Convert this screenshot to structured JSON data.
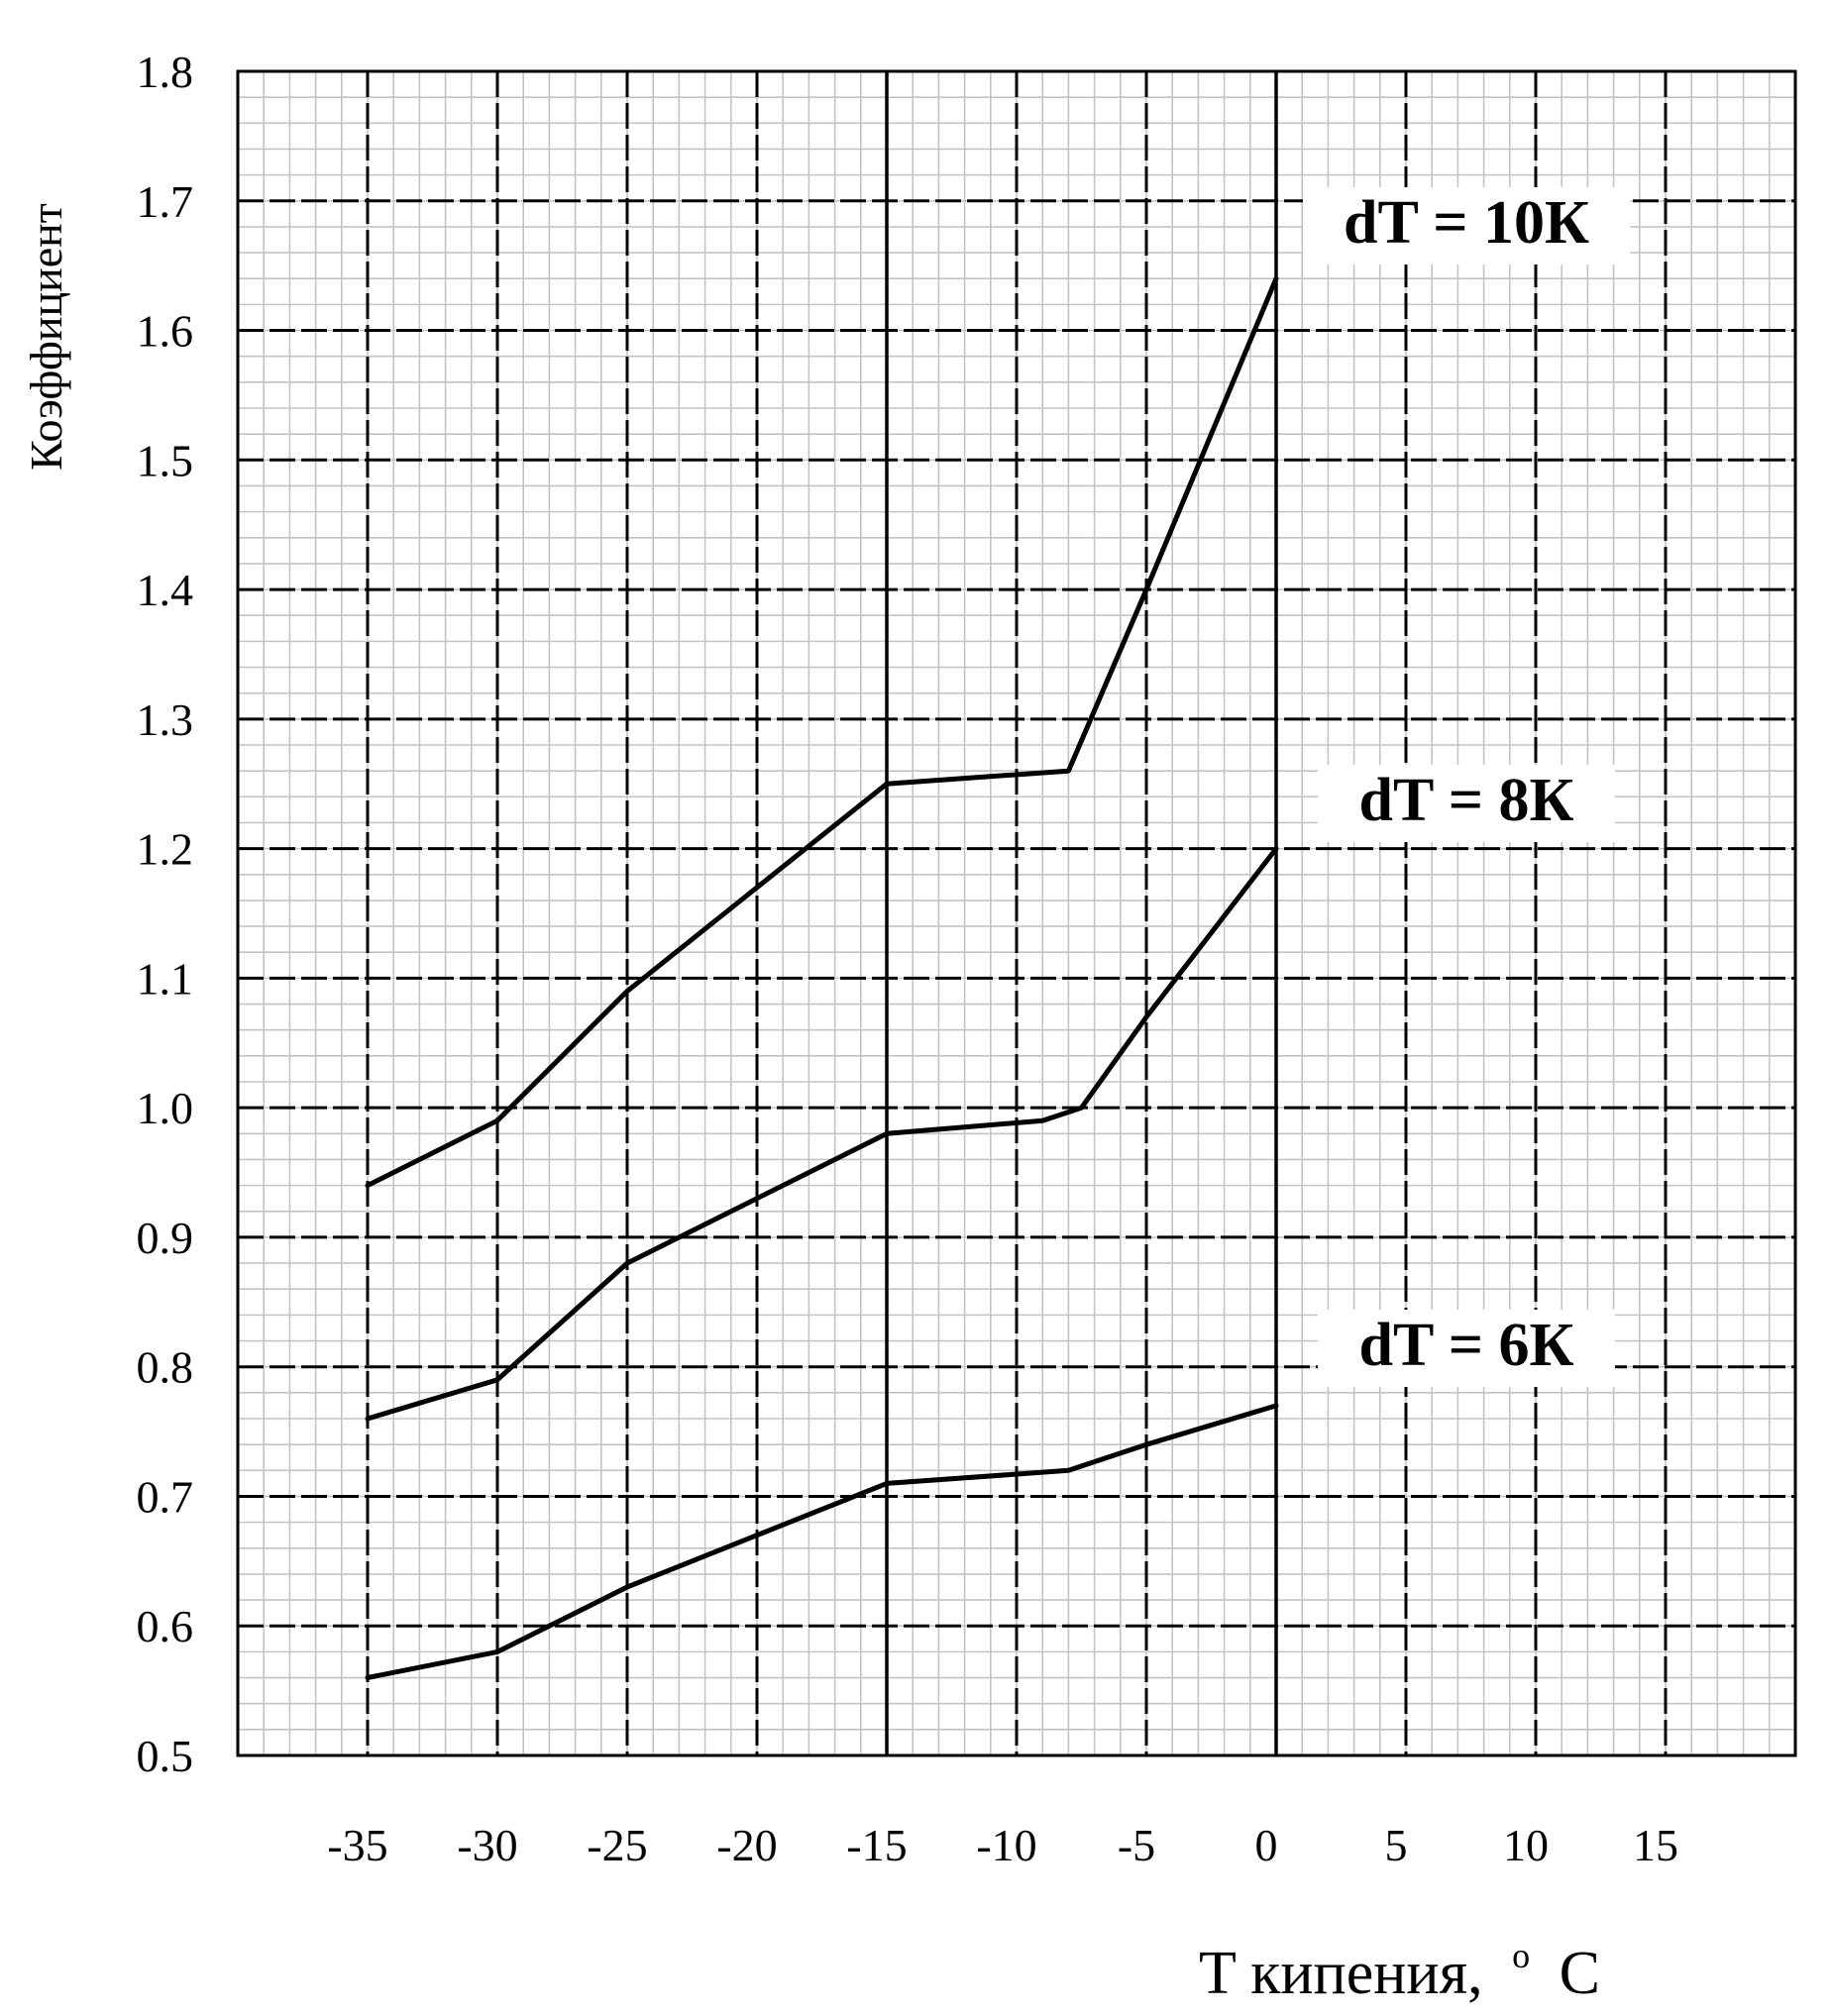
{
  "chart_data": {
    "type": "line",
    "title": "",
    "xlabel": "T кипения,",
    "xlabel_sup": "o",
    "xlabel_unit": "C",
    "ylabel": "Коэффициент",
    "xlim": [
      -40,
      20
    ],
    "ylim": [
      0.5,
      1.8
    ],
    "x_ticks": [
      -35,
      -30,
      -25,
      -20,
      -15,
      -10,
      -5,
      0,
      5,
      10,
      15
    ],
    "x_tick_labels": [
      "-35",
      "-30",
      "-25",
      "-20",
      "-15",
      "-10",
      "-5",
      "0",
      "5",
      "10",
      "15"
    ],
    "y_ticks": [
      0.5,
      0.6,
      0.7,
      0.8,
      0.9,
      1.0,
      1.1,
      1.2,
      1.3,
      1.4,
      1.5,
      1.6,
      1.7,
      1.8
    ],
    "y_tick_labels": [
      "0.5",
      "0.6",
      "0.7",
      "0.8",
      "0.9",
      "1.0",
      "1.1",
      "1.2",
      "1.3",
      "1.4",
      "1.5",
      "1.6",
      "1.7",
      "1.8"
    ],
    "grid": true,
    "series": [
      {
        "label": "dT = 10К",
        "points": [
          [
            -35,
            0.94
          ],
          [
            -30,
            0.99
          ],
          [
            -25,
            1.09
          ],
          [
            -20,
            1.17
          ],
          [
            -15,
            1.25
          ],
          [
            -8,
            1.26
          ],
          [
            -5,
            1.4
          ],
          [
            0,
            1.64
          ]
        ]
      },
      {
        "label": "dT = 8К",
        "points": [
          [
            -35,
            0.76
          ],
          [
            -30,
            0.79
          ],
          [
            -25,
            0.88
          ],
          [
            -20,
            0.93
          ],
          [
            -15,
            0.98
          ],
          [
            -9,
            0.99
          ],
          [
            -7.5,
            1.0
          ],
          [
            -5,
            1.07
          ],
          [
            0,
            1.2
          ]
        ]
      },
      {
        "label": "dT = 6К",
        "points": [
          [
            -35,
            0.56
          ],
          [
            -30,
            0.58
          ],
          [
            -25,
            0.63
          ],
          [
            -20,
            0.67
          ],
          [
            -15,
            0.71
          ],
          [
            -8,
            0.72
          ],
          [
            -5,
            0.74
          ],
          [
            0,
            0.77
          ]
        ]
      }
    ]
  }
}
